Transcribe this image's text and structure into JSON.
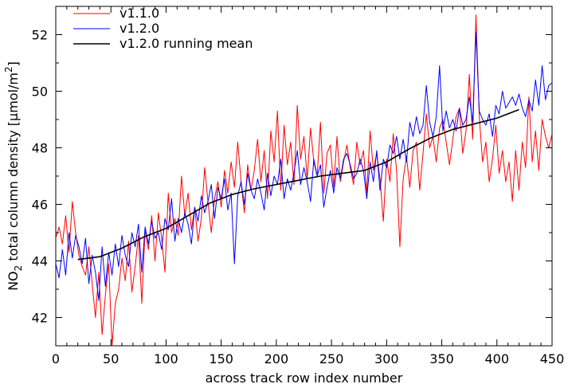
{
  "chart_data": {
    "type": "line",
    "title": "",
    "xlabel": "across track row index number",
    "ylabel": {
      "prefix": "NO",
      "subscript": "2",
      "main": " total column density  [",
      "mu": "µ",
      "unit": "mol/m",
      "superscript": "2",
      "close": "]"
    },
    "xlim": [
      0,
      450
    ],
    "ylim": [
      41,
      53
    ],
    "xticks": [
      0,
      50,
      100,
      150,
      200,
      250,
      300,
      350,
      400,
      450
    ],
    "xtick_labels": [
      "0",
      "50",
      "100",
      "150",
      "200",
      "250",
      "300",
      "350",
      "400",
      "450"
    ],
    "yticks": [
      42,
      44,
      46,
      48,
      50,
      52
    ],
    "ytick_labels": [
      "42",
      "44",
      "46",
      "48",
      "50",
      "52"
    ],
    "grid": false,
    "legend_position": "top-left",
    "series": [
      {
        "name": "v1.1.0",
        "color": "#ff0000",
        "x_start": 0,
        "x_step": 3,
        "values": [
          44.8,
          45.2,
          44.6,
          45.6,
          44.3,
          46.1,
          45.0,
          44.2,
          43.8,
          43.5,
          44.5,
          43.2,
          42.0,
          43.6,
          41.4,
          42.8,
          43.9,
          41.0,
          42.5,
          43.0,
          44.1,
          43.3,
          44.7,
          42.9,
          43.8,
          44.9,
          42.5,
          45.1,
          44.4,
          45.6,
          44.0,
          45.7,
          44.8,
          43.6,
          46.4,
          45.0,
          45.5,
          44.9,
          47.0,
          45.6,
          46.4,
          45.1,
          45.9,
          44.7,
          45.5,
          47.3,
          46.1,
          45.0,
          46.2,
          46.8,
          45.9,
          47.2,
          46.4,
          47.5,
          46.6,
          48.2,
          46.8,
          45.7,
          47.4,
          46.5,
          47.2,
          48.3,
          46.8,
          47.9,
          46.2,
          48.6,
          47.5,
          49.3,
          46.5,
          48.8,
          47.4,
          48.2,
          46.7,
          49.5,
          47.6,
          48.4,
          46.9,
          48.7,
          47.5,
          47.0,
          48.9,
          46.4,
          47.8,
          48.1,
          46.6,
          48.4,
          46.8,
          47.5,
          48.1,
          47.3,
          46.7,
          48.2,
          47.4,
          47.9,
          46.4,
          48.6,
          47.2,
          47.8,
          46.9,
          45.4,
          47.6,
          46.8,
          48.5,
          47.2,
          44.5,
          46.9,
          47.7,
          46.6,
          47.9,
          48.2,
          46.5,
          47.8,
          49.2,
          48.0,
          48.4,
          47.5,
          48.7,
          49.0,
          48.2,
          47.4,
          48.3,
          49.1,
          49.4,
          47.8,
          48.6,
          50.6,
          48.3,
          52.7,
          49.1,
          47.5,
          48.2,
          46.8,
          47.6,
          48.8,
          47.1,
          47.9,
          46.8,
          47.5,
          46.1,
          47.9,
          46.5,
          48.2,
          47.3,
          49.8,
          47.5,
          48.6,
          47.2,
          49.0,
          48.4,
          48.0,
          48.5
        ]
      },
      {
        "name": "v1.2.0",
        "color": "#0000ff",
        "x_start": 0,
        "x_step": 3,
        "values": [
          43.9,
          43.4,
          44.4,
          43.5,
          45.0,
          44.1,
          44.9,
          44.5,
          43.9,
          44.8,
          43.2,
          44.2,
          43.6,
          42.6,
          44.5,
          43.1,
          44.3,
          43.5,
          44.6,
          43.8,
          44.9,
          44.2,
          43.8,
          45.0,
          44.5,
          45.3,
          43.6,
          45.2,
          44.6,
          45.4,
          44.8,
          45.0,
          44.4,
          45.5,
          45.1,
          46.2,
          44.7,
          45.5,
          45.0,
          45.7,
          45.3,
          44.6,
          45.9,
          45.4,
          46.3,
          45.7,
          46.1,
          46.7,
          45.5,
          46.6,
          46.2,
          46.9,
          45.8,
          46.4,
          43.9,
          46.3,
          46.8,
          46.0,
          47.1,
          46.5,
          46.2,
          46.9,
          46.4,
          45.8,
          47.1,
          46.3,
          47.0,
          46.7,
          47.6,
          46.2,
          46.9,
          46.5,
          47.1,
          47.9,
          46.7,
          47.3,
          46.8,
          46.1,
          47.6,
          47.0,
          47.4,
          45.9,
          46.6,
          47.2,
          46.4,
          47.3,
          46.9,
          47.6,
          47.8,
          47.4,
          46.9,
          47.1,
          47.6,
          47.2,
          46.2,
          47.5,
          46.8,
          47.9,
          46.5,
          47.6,
          47.3,
          48.1,
          47.8,
          48.4,
          47.6,
          48.3,
          47.5,
          48.9,
          48.4,
          49.1,
          48.5,
          48.8,
          50.2,
          48.9,
          48.4,
          49.1,
          50.9,
          48.6,
          49.3,
          48.7,
          49.0,
          48.6,
          49.4,
          48.8,
          49.0,
          49.8,
          48.9,
          52.1,
          49.3,
          49.0,
          48.8,
          49.2,
          48.4,
          49.5,
          49.2,
          50.0,
          49.4,
          49.6,
          49.8,
          49.5,
          49.9,
          49.4,
          49.1,
          49.7,
          49.3,
          50.4,
          49.5,
          50.9,
          49.7,
          50.2,
          50.3
        ]
      },
      {
        "name": "v1.2.0 running mean",
        "color": "#000000",
        "x": [
          20,
          40,
          60,
          80,
          100,
          120,
          140,
          160,
          180,
          200,
          220,
          240,
          260,
          280,
          300,
          320,
          340,
          360,
          380,
          400,
          420
        ],
        "values": [
          44.05,
          44.15,
          44.45,
          44.85,
          45.15,
          45.6,
          46.05,
          46.35,
          46.55,
          46.7,
          46.85,
          47.0,
          47.1,
          47.2,
          47.5,
          47.95,
          48.35,
          48.65,
          48.85,
          49.05,
          49.35
        ]
      }
    ]
  }
}
